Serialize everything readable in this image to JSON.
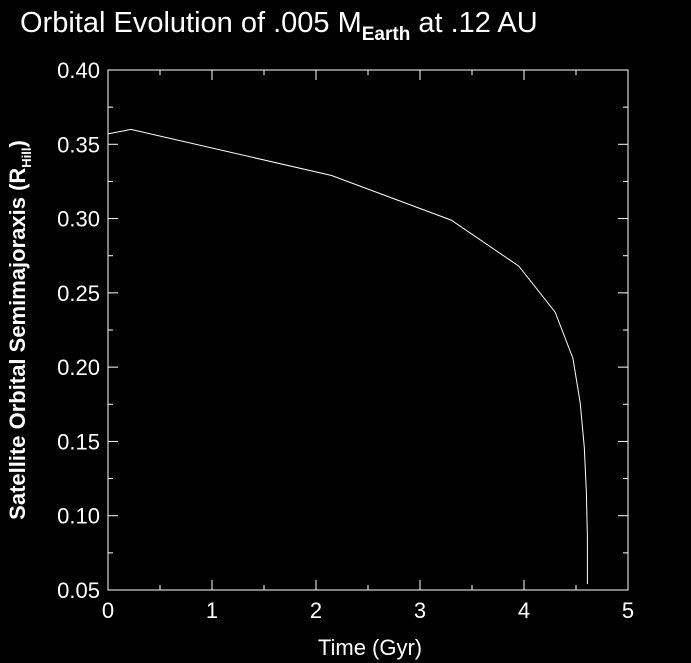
{
  "chart_data": {
    "type": "line",
    "title": {
      "prefix": "Orbital Evolution of .005 M",
      "subscript": "Earth",
      "suffix": " at .12 AU"
    },
    "xlabel": "Time (Gyr)",
    "ylabel": {
      "main": "Satellite Orbital Semimajoraxis (R",
      "subscript": "Hill",
      "close": ")"
    },
    "xlim": [
      0,
      5
    ],
    "ylim": [
      0.05,
      0.4
    ],
    "xticks": [
      0,
      1,
      2,
      3,
      4,
      5
    ],
    "xtick_labels": [
      "0",
      "1",
      "2",
      "3",
      "4",
      "5"
    ],
    "yticks": [
      0.05,
      0.1,
      0.15,
      0.2,
      0.25,
      0.3,
      0.35,
      0.4
    ],
    "ytick_labels": [
      "0.05",
      "0.10",
      "0.15",
      "0.20",
      "0.25",
      "0.30",
      "0.35",
      "0.40"
    ],
    "grid": false,
    "colors": {
      "background": "#000000",
      "foreground": "#ffffff",
      "line": "#ffffff"
    },
    "series": [
      {
        "x": [
          0.0,
          0.22,
          2.15,
          3.3,
          3.95,
          4.3,
          4.47,
          4.54,
          4.58,
          4.6,
          4.61,
          4.61
        ],
        "y": [
          0.357,
          0.36,
          0.329,
          0.299,
          0.268,
          0.237,
          0.206,
          0.176,
          0.146,
          0.115,
          0.085,
          0.054
        ]
      }
    ]
  }
}
